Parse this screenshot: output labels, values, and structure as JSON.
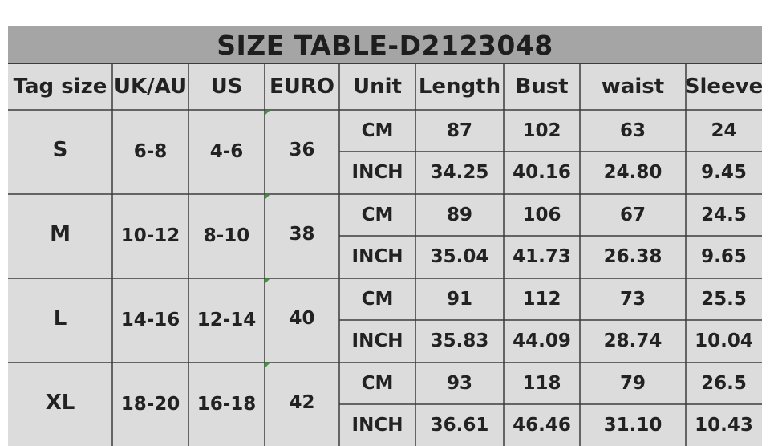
{
  "title": "SIZE TABLE-D2123048",
  "headers": [
    "Tag size",
    "UK/AU",
    "US",
    "EURO",
    "Unit",
    "Length",
    "Bust",
    "waist",
    "Sleeve"
  ],
  "rows": [
    {
      "tag": "S",
      "uk_au": "6-8",
      "us": "4-6",
      "euro": "36",
      "cm": {
        "unit": "CM",
        "length": "87",
        "bust": "102",
        "waist": "63",
        "sleeve": "24"
      },
      "inch": {
        "unit": "INCH",
        "length": "34.25",
        "bust": "40.16",
        "waist": "24.80",
        "sleeve": "9.45"
      }
    },
    {
      "tag": "M",
      "uk_au": "10-12",
      "us": "8-10",
      "euro": "38",
      "cm": {
        "unit": "CM",
        "length": "89",
        "bust": "106",
        "waist": "67",
        "sleeve": "24.5"
      },
      "inch": {
        "unit": "INCH",
        "length": "35.04",
        "bust": "41.73",
        "waist": "26.38",
        "sleeve": "9.65"
      }
    },
    {
      "tag": "L",
      "uk_au": "14-16",
      "us": "12-14",
      "euro": "40",
      "cm": {
        "unit": "CM",
        "length": "91",
        "bust": "112",
        "waist": "73",
        "sleeve": "25.5"
      },
      "inch": {
        "unit": "INCH",
        "length": "35.83",
        "bust": "44.09",
        "waist": "28.74",
        "sleeve": "10.04"
      }
    },
    {
      "tag": "XL",
      "uk_au": "18-20",
      "us": "16-18",
      "euro": "42",
      "cm": {
        "unit": "CM",
        "length": "93",
        "bust": "118",
        "waist": "79",
        "sleeve": "26.5"
      },
      "inch": {
        "unit": "INCH",
        "length": "36.61",
        "bust": "46.46",
        "waist": "31.10",
        "sleeve": "10.43"
      }
    }
  ],
  "colors": {
    "title_bar": "#a5a5a5",
    "table_bg": "#dcdcdc",
    "grid_lines": "#3c3c3c",
    "text": "#222222"
  }
}
